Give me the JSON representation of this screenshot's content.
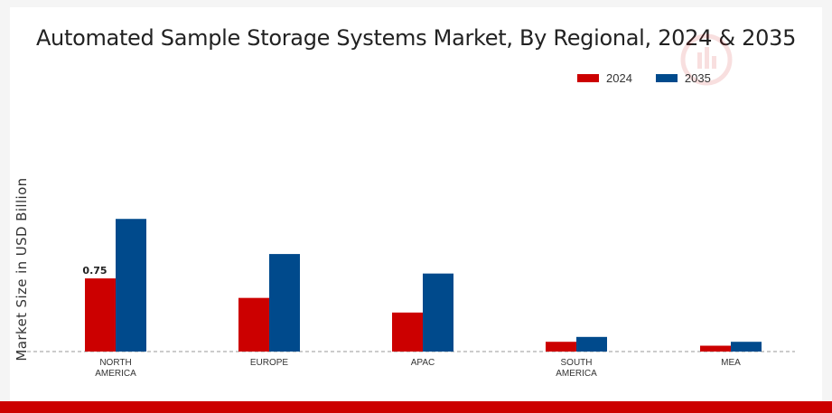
{
  "colors": {
    "series_2024": "#cc0000",
    "series_2035": "#004a8c",
    "bottom_bar": "#cc0000"
  },
  "chart_data": {
    "type": "bar",
    "title": "Automated Sample Storage Systems Market, By Regional, 2024 & 2035",
    "xlabel": "",
    "ylabel": "Market Size in USD Billion",
    "ylim": [
      0,
      2.4
    ],
    "categories": [
      "NORTH\nAMERICA",
      "EUROPE",
      "APAC",
      "SOUTH\nAMERICA",
      "MEA"
    ],
    "series": [
      {
        "name": "2024",
        "values": [
          0.75,
          0.55,
          0.4,
          0.1,
          0.06
        ]
      },
      {
        "name": "2035",
        "values": [
          1.36,
          1.0,
          0.8,
          0.15,
          0.1
        ]
      }
    ],
    "data_labels": [
      {
        "series": "2024",
        "category_index": 0,
        "text": "0.75"
      }
    ],
    "legend_position": "top-right",
    "grid": false
  }
}
